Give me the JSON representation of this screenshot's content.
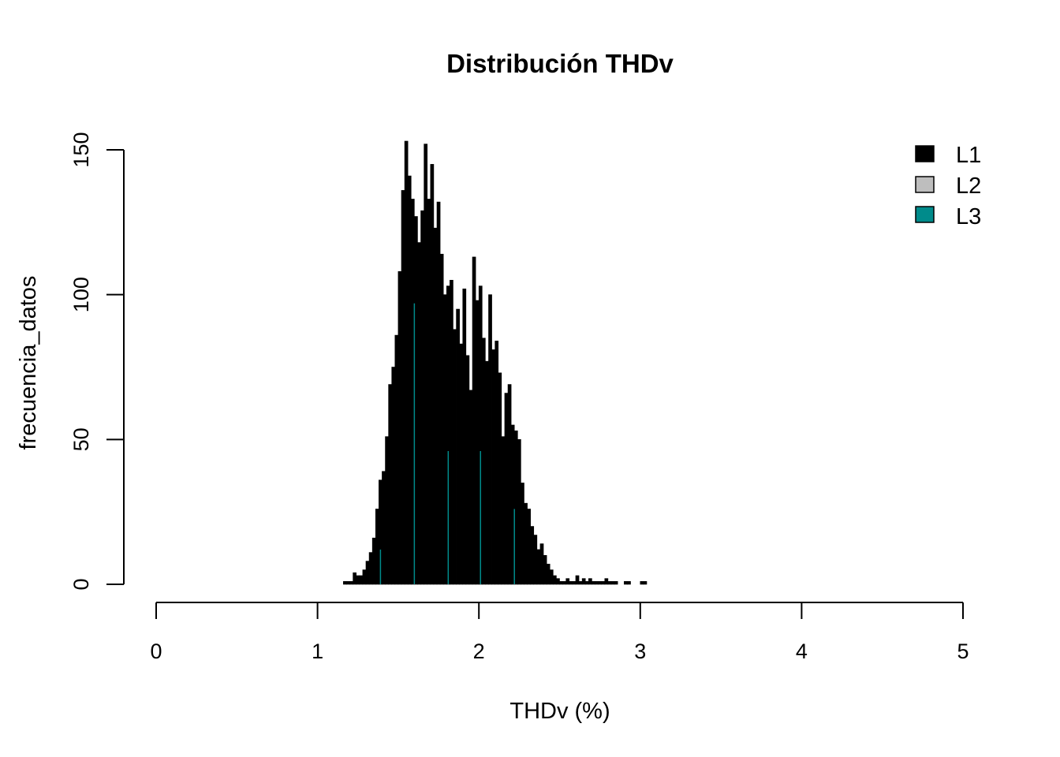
{
  "chart_data": {
    "type": "bar",
    "title": "Distribución THDv",
    "xlabel": "THDv (%)",
    "ylabel": "frecuencia_datos",
    "xlim": [
      0,
      5
    ],
    "ylim": [
      0,
      150
    ],
    "x_ticks": [
      "0",
      "1",
      "2",
      "3",
      "4",
      "5"
    ],
    "y_ticks": [
      "0",
      "50",
      "100",
      "150"
    ],
    "legend": {
      "position": "top-right",
      "entries": [
        {
          "label": "L1",
          "color": "#000000"
        },
        {
          "label": "L2",
          "color": "#BEBEBE"
        },
        {
          "label": "L3",
          "color": "#008B8B"
        }
      ]
    },
    "bin_width": 0.02,
    "series": [
      {
        "name": "L1",
        "color": "#000000",
        "bin_start": [
          1.16,
          1.18,
          1.2,
          1.22,
          1.24,
          1.26,
          1.28,
          1.3,
          1.32,
          1.34,
          1.36,
          1.38,
          1.4,
          1.42,
          1.44,
          1.46,
          1.48,
          1.5,
          1.52,
          1.54,
          1.56,
          1.58,
          1.6,
          1.62,
          1.64,
          1.66,
          1.68,
          1.7,
          1.72,
          1.74,
          1.76,
          1.78,
          1.8,
          1.82,
          1.84,
          1.86,
          1.88,
          1.9,
          1.92,
          1.94,
          1.96,
          1.98,
          2.0,
          2.02,
          2.04,
          2.06,
          2.08,
          2.1,
          2.12,
          2.14,
          2.16,
          2.18,
          2.2,
          2.22,
          2.24,
          2.26,
          2.28,
          2.3,
          2.32,
          2.34,
          2.36,
          2.38,
          2.4,
          2.42,
          2.44,
          2.46,
          2.48,
          2.5,
          2.52,
          2.54,
          2.56,
          2.58,
          2.6,
          2.62,
          2.64,
          2.66,
          2.68,
          2.7,
          2.72,
          2.74,
          2.76,
          2.78,
          2.8,
          2.82,
          2.84,
          2.86,
          2.88,
          2.9,
          2.92,
          2.94,
          2.96,
          2.98,
          3.0,
          3.02
        ],
        "values": [
          1,
          1,
          1,
          4,
          3,
          3,
          5,
          8,
          11,
          16,
          26,
          36,
          39,
          51,
          69,
          75,
          86,
          108,
          136,
          153,
          141,
          133,
          127,
          118,
          129,
          152,
          133,
          145,
          123,
          132,
          114,
          100,
          103,
          105,
          88,
          95,
          83,
          102,
          79,
          67,
          113,
          98,
          103,
          85,
          77,
          100,
          81,
          84,
          73,
          51,
          66,
          69,
          55,
          53,
          50,
          35,
          28,
          26,
          20,
          17,
          12,
          14,
          10,
          7,
          5,
          3,
          2,
          1,
          1,
          2,
          1,
          1,
          3,
          1,
          2,
          1,
          2,
          1,
          1,
          1,
          1,
          2,
          1,
          1,
          1,
          0,
          0,
          1,
          1,
          0,
          0,
          0,
          1,
          1
        ]
      },
      {
        "name": "L3",
        "color": "#008B8B",
        "bin_start": [
          1.38,
          1.59,
          1.8,
          2.0,
          2.21
        ],
        "values": [
          12,
          97,
          46,
          46,
          26
        ]
      }
    ]
  }
}
